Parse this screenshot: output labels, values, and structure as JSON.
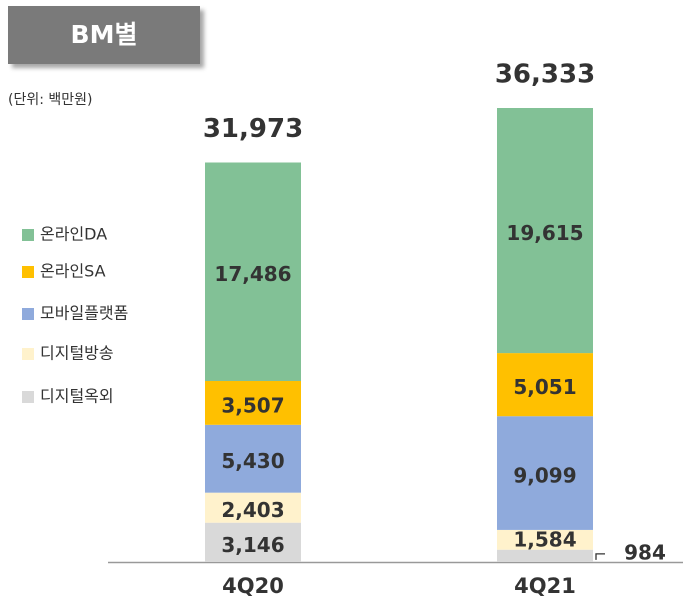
{
  "badge": "BM별",
  "unit_note": "(단위: 백만원)",
  "chart_data": {
    "type": "stacked_bar",
    "categories": [
      "4Q20",
      "4Q21"
    ],
    "series": [
      {
        "name": "디지털옥외",
        "color": "#d9d9d9",
        "values": [
          3146,
          984
        ],
        "value_labels": [
          "3,146",
          "984"
        ]
      },
      {
        "name": "디지털방송",
        "color": "#fff2cc",
        "values": [
          2403,
          1584
        ],
        "value_labels": [
          "2,403",
          "1,584"
        ]
      },
      {
        "name": "모바일플랫폼",
        "color": "#8faadc",
        "values": [
          5430,
          9099
        ],
        "value_labels": [
          "5,430",
          "9,099"
        ]
      },
      {
        "name": "온라인SA",
        "color": "#ffc000",
        "values": [
          3507,
          5051
        ],
        "value_labels": [
          "3,507",
          "5,051"
        ]
      },
      {
        "name": "온라인DA",
        "color": "#82c196",
        "values": [
          17486,
          19615
        ],
        "value_labels": [
          "17,486",
          "19,615"
        ]
      }
    ],
    "totals": [
      31973,
      36333
    ],
    "total_labels": [
      "31,973",
      "36,333"
    ]
  }
}
